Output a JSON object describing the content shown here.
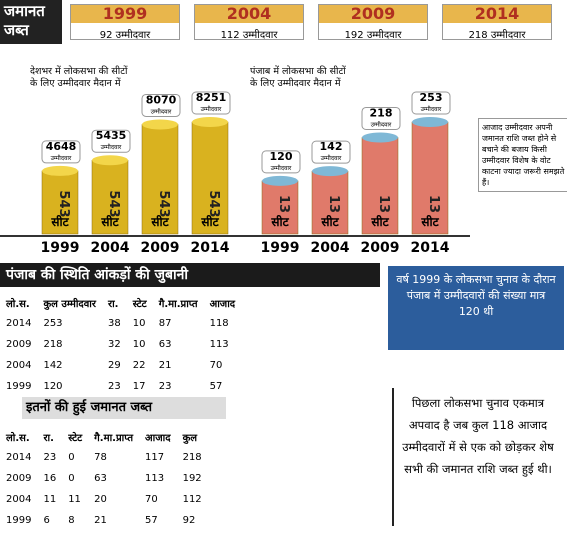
{
  "header": {
    "title": "जमानत जब्त",
    "years": [
      {
        "year": "1999",
        "count": "92 उम्मीदवार"
      },
      {
        "year": "2004",
        "count": "112 उम्मीदवार"
      },
      {
        "year": "2009",
        "count": "192 उम्मीदवार"
      },
      {
        "year": "2014",
        "count": "218 उम्मीदवार"
      }
    ]
  },
  "chart_data": [
    {
      "type": "bar",
      "title": "देशभर में लोकसभा की सीटों के लिए उम्मीदवार मैदान में",
      "categories": [
        "1999",
        "2004",
        "2009",
        "2014"
      ],
      "values": [
        4648,
        5435,
        8070,
        8251
      ],
      "value_unit": "उम्मीदवार",
      "seats": [
        543,
        543,
        543,
        543
      ],
      "seat_unit": "सीट",
      "color": "#d9b21f",
      "cap_color": "#f3d64a"
    },
    {
      "type": "bar",
      "title": "पंजाब में लोकसभा की सीटों के लिए उम्मीदवार मैदान में",
      "categories": [
        "1999",
        "2004",
        "2009",
        "2014"
      ],
      "values": [
        120,
        142,
        218,
        253
      ],
      "value_unit": "उम्मीदवार",
      "seats": [
        13,
        13,
        13,
        13
      ],
      "seat_unit": "सीट",
      "color": "#e07a6a",
      "cap_color": "#7fb8d6"
    }
  ],
  "note": "आजाद उम्मीदवार अपनी जमानत राशि जब्त होने से बचाने की बजाय किसी उम्मीदवार विशेष के वोट काटना ज्यादा जरूरी समझते हैं।",
  "section1": {
    "title": "पंजाब की स्थिति आंकड़ों की जुबानी",
    "callout": "वर्ष 1999 के लोकसभा चुनाव के दौरान पंजाब में उम्मीदवारों की संख्या मात्र 120 थी"
  },
  "table1": {
    "header": [
      "लो.स.",
      "कुल उम्मीदवार",
      "रा.",
      "स्टेट",
      "गै.मा.प्राप्त",
      "आजाद"
    ],
    "rows": [
      [
        "2014",
        "253",
        "38",
        "10",
        "87",
        "118"
      ],
      [
        "2009",
        "218",
        "32",
        "10",
        "63",
        "113"
      ],
      [
        "2004",
        "142",
        "29",
        "22",
        "21",
        "70"
      ],
      [
        "1999",
        "120",
        "23",
        "17",
        "23",
        "57"
      ]
    ]
  },
  "section2": {
    "title": "इतनों की हुई जमानत जब्त",
    "text": "पिछला लोकसभा चुनाव एकमात्र अपवाद है जब कुल 118 आजाद उम्मीदवारों में से एक को छोड़कर शेष सभी की जमानत राशि जब्त हुई थी।"
  },
  "table2": {
    "header": [
      "लो.स.",
      "रा.",
      "स्टेट",
      "गै.मा.प्राप्त",
      "आजाद",
      "कुल"
    ],
    "rows": [
      [
        "2014",
        "23",
        "0",
        "78",
        "117",
        "218"
      ],
      [
        "2009",
        "16",
        "0",
        "63",
        "113",
        "192"
      ],
      [
        "2004",
        "11",
        "11",
        "20",
        "70",
        "112"
      ],
      [
        "1999",
        "6",
        "8",
        "21",
        "57",
        "92"
      ]
    ]
  }
}
